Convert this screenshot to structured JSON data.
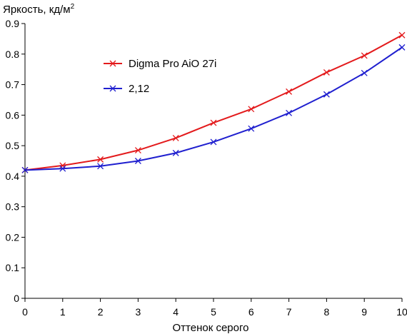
{
  "chart_data": {
    "type": "line",
    "title": "",
    "ylabel": "Яркость, кд/м",
    "ylabel_sup": "2",
    "xlabel": "Оттенок серого",
    "xlim": [
      0,
      10
    ],
    "ylim": [
      0,
      0.9
    ],
    "x_ticks": [
      "0",
      "1",
      "2",
      "3",
      "4",
      "5",
      "6",
      "7",
      "8",
      "9",
      "10"
    ],
    "y_ticks": [
      "0",
      "0.1",
      "0.2",
      "0.3",
      "0.4",
      "0.5",
      "0.6",
      "0.7",
      "0.8",
      "0.9"
    ],
    "grid": false,
    "legend_position": "top-left",
    "x": [
      0,
      1,
      2,
      3,
      4,
      5,
      6,
      7,
      8,
      9,
      10
    ],
    "series": [
      {
        "name": "Digma Pro AiO 27i",
        "color": "#e31a1c",
        "marker": "x",
        "values": [
          0.42,
          0.435,
          0.455,
          0.485,
          0.525,
          0.575,
          0.62,
          0.677,
          0.74,
          0.795,
          0.862
        ]
      },
      {
        "name": "2,12",
        "color": "#1f1fcf",
        "marker": "x",
        "values": [
          0.42,
          0.425,
          0.433,
          0.45,
          0.476,
          0.512,
          0.556,
          0.607,
          0.668,
          0.738,
          0.822
        ]
      }
    ]
  }
}
